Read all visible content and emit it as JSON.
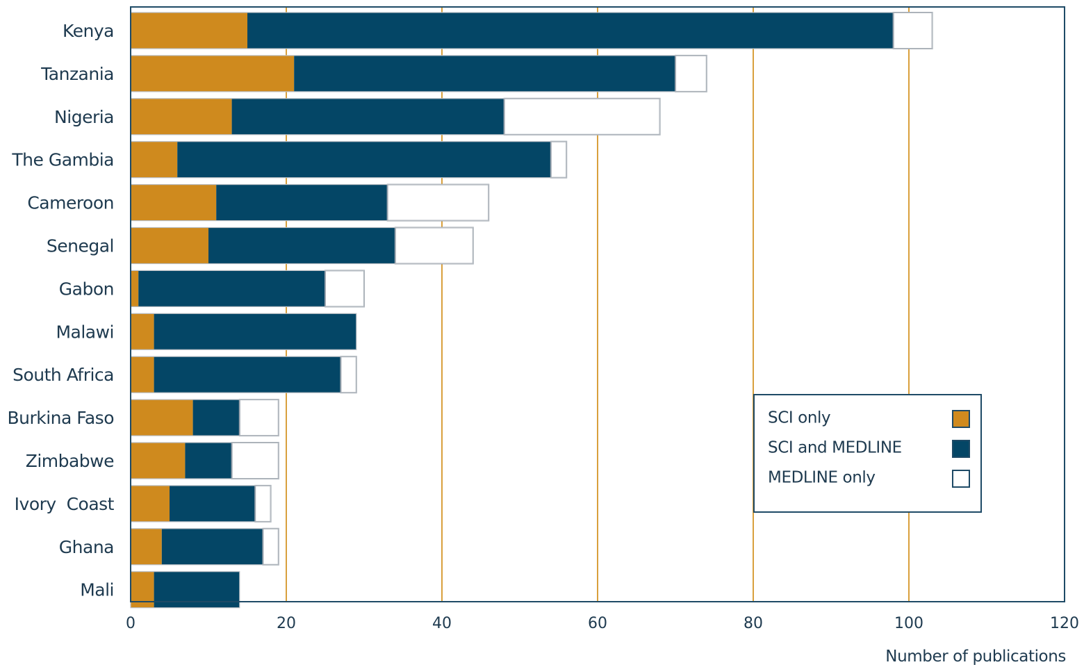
{
  "chart_data": {
    "type": "bar",
    "orientation": "horizontal",
    "stacked": true,
    "categories": [
      "Kenya",
      "Tanzania",
      "Nigeria",
      "The Gambia",
      "Cameroon",
      "Senegal",
      "Gabon",
      "Malawi",
      "South Africa",
      "Burkina Faso",
      "Zimbabwe",
      "Ivory  Coast",
      "Ghana",
      "Mali"
    ],
    "series": [
      {
        "name": "SCI only",
        "color": "#cf8a1e",
        "values": [
          15,
          21,
          13,
          6,
          11,
          10,
          1,
          3,
          3,
          8,
          7,
          5,
          4,
          3
        ]
      },
      {
        "name": "SCI and MEDLINE",
        "color": "#044666",
        "values": [
          83,
          49,
          35,
          48,
          22,
          24,
          24,
          26,
          24,
          6,
          6,
          11,
          13,
          11
        ]
      },
      {
        "name": "MEDLINE only",
        "color": "#ffffff",
        "values": [
          5,
          4,
          20,
          2,
          13,
          10,
          5,
          0,
          2,
          5,
          6,
          2,
          2,
          0
        ]
      }
    ],
    "xlabel": "Number of publications",
    "xlim": [
      0,
      120
    ],
    "xticks": [
      0,
      20,
      40,
      60,
      80,
      100,
      120
    ],
    "grid": "vertical",
    "grid_color": "#d9a03c",
    "frame_color": "#1e4a66",
    "legend_position": "lower-right"
  }
}
